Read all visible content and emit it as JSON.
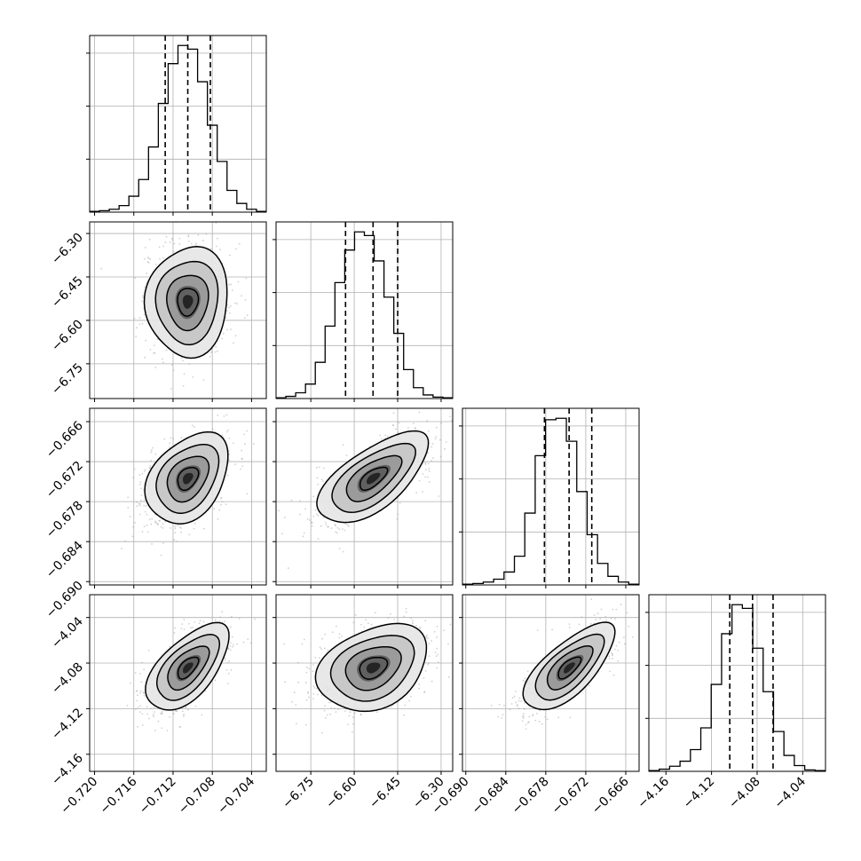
{
  "chart_data": {
    "type": "corner",
    "parameters": [
      {
        "ticks": [
          -0.72,
          -0.716,
          -0.712,
          -0.708,
          -0.704
        ],
        "tick_labels": [
          "−0.720",
          "−0.716",
          "−0.712",
          "−0.708",
          "−0.704"
        ],
        "range": [
          -0.7205,
          -0.7025
        ],
        "mean": -0.7105,
        "sigma": 0.0021,
        "quantiles": [
          -0.7128,
          -0.7105,
          -0.7082
        ]
      },
      {
        "ticks": [
          -6.75,
          -6.6,
          -6.45,
          -6.3
        ],
        "tick_labels": [
          "−6.75",
          "−6.60",
          "−6.45",
          "−6.30"
        ],
        "range": [
          -6.87,
          -6.26
        ],
        "mean": -6.535,
        "sigma": 0.095,
        "quantiles": [
          -6.63,
          -6.535,
          -6.45
        ]
      },
      {
        "ticks": [
          -0.69,
          -0.684,
          -0.678,
          -0.672,
          -0.666
        ],
        "tick_labels": [
          "−0.690",
          "−0.684",
          "−0.678",
          "−0.672",
          "−0.666"
        ],
        "range": [
          -0.6905,
          -0.664
        ],
        "mean": -0.6745,
        "sigma": 0.0034,
        "quantiles": [
          -0.6782,
          -0.6745,
          -0.6711
        ]
      },
      {
        "ticks": [
          -4.16,
          -4.12,
          -4.08,
          -4.04
        ],
        "tick_labels": [
          "−4.16",
          "−4.12",
          "−4.08",
          "−4.04"
        ],
        "range": [
          -4.175,
          -4.02
        ],
        "mean": -4.084,
        "sigma": 0.019,
        "quantiles": [
          -4.104,
          -4.084,
          -4.066
        ]
      }
    ],
    "histograms": [
      [
        1,
        2,
        4,
        9,
        22,
        45,
        90,
        150,
        205,
        230,
        225,
        180,
        120,
        70,
        30,
        12,
        4,
        1
      ],
      [
        1,
        3,
        8,
        20,
        50,
        100,
        160,
        205,
        230,
        225,
        190,
        140,
        90,
        40,
        15,
        5,
        2,
        1
      ],
      [
        1,
        2,
        4,
        8,
        18,
        40,
        100,
        180,
        230,
        232,
        200,
        130,
        70,
        30,
        12,
        4,
        1
      ],
      [
        1,
        3,
        7,
        14,
        30,
        60,
        120,
        190,
        230,
        225,
        170,
        110,
        55,
        22,
        8,
        2,
        1
      ]
    ],
    "correlations": {
      "1-0": 0.05,
      "2-0": 0.35,
      "2-1": 0.65,
      "3-0": 0.6,
      "3-1": 0.3,
      "3-2": 0.7
    },
    "grid": true,
    "contour_levels_sigma": [
      0.5,
      1.0,
      1.5,
      2.0
    ]
  }
}
